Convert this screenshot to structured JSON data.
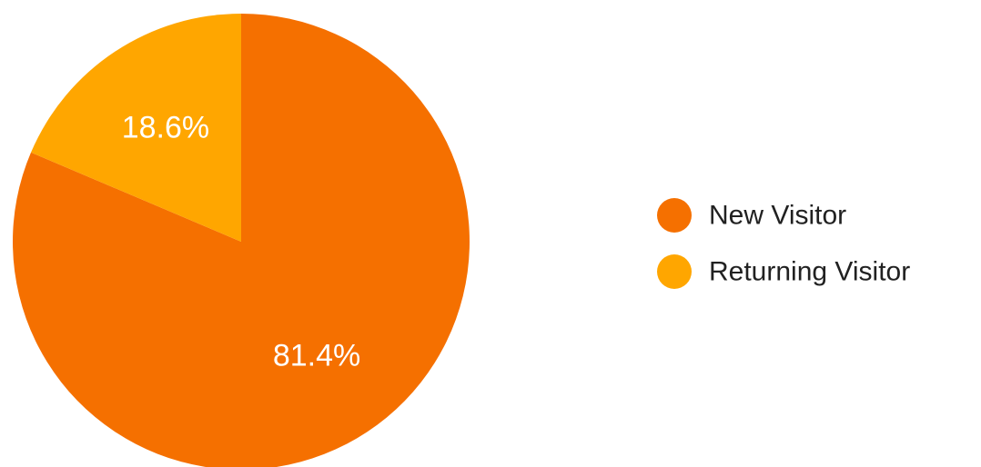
{
  "chart_data": {
    "type": "pie",
    "title": "",
    "start_angle_deg": 0,
    "direction": "clockwise",
    "legend_position": "right",
    "slices": [
      {
        "label": "New Visitor",
        "value": 81.4,
        "display": "81.4%",
        "color": "#F57000"
      },
      {
        "label": "Returning Visitor",
        "value": 18.6,
        "display": "18.6%",
        "color": "#FFA600"
      }
    ]
  }
}
